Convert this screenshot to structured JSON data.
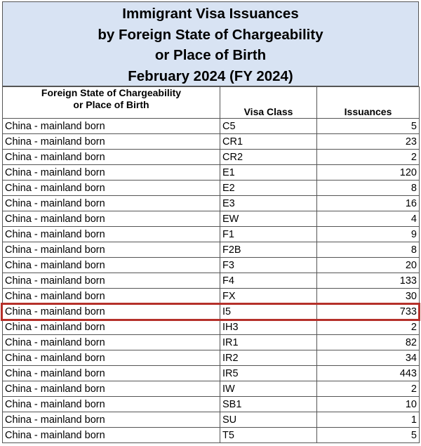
{
  "title": {
    "lines": [
      "Immigrant Visa Issuances",
      "by Foreign State of Chargeability",
      "or Place of Birth",
      "February 2024 (FY 2024)"
    ]
  },
  "table": {
    "headers": {
      "country_line1": "Foreign State of Chargeability",
      "country_line2": "or Place of Birth",
      "visa_class": "Visa Class",
      "issuances": "Issuances"
    },
    "rows": [
      {
        "country": "China - mainland born",
        "visa_class": "C5",
        "issuances": "5"
      },
      {
        "country": "China - mainland born",
        "visa_class": "CR1",
        "issuances": "23"
      },
      {
        "country": "China - mainland born",
        "visa_class": "CR2",
        "issuances": "2"
      },
      {
        "country": "China - mainland born",
        "visa_class": "E1",
        "issuances": "120"
      },
      {
        "country": "China - mainland born",
        "visa_class": "E2",
        "issuances": "8"
      },
      {
        "country": "China - mainland born",
        "visa_class": "E3",
        "issuances": "16"
      },
      {
        "country": "China - mainland born",
        "visa_class": "EW",
        "issuances": "4"
      },
      {
        "country": "China - mainland born",
        "visa_class": "F1",
        "issuances": "9"
      },
      {
        "country": "China - mainland born",
        "visa_class": "F2B",
        "issuances": "8"
      },
      {
        "country": "China - mainland born",
        "visa_class": "F3",
        "issuances": "20"
      },
      {
        "country": "China - mainland born",
        "visa_class": "F4",
        "issuances": "133"
      },
      {
        "country": "China - mainland born",
        "visa_class": "FX",
        "issuances": "30"
      },
      {
        "country": "China - mainland born",
        "visa_class": "I5",
        "issuances": "733"
      },
      {
        "country": "China - mainland born",
        "visa_class": "IH3",
        "issuances": "2"
      },
      {
        "country": "China - mainland born",
        "visa_class": "IR1",
        "issuances": "82"
      },
      {
        "country": "China - mainland born",
        "visa_class": "IR2",
        "issuances": "34"
      },
      {
        "country": "China - mainland born",
        "visa_class": "IR5",
        "issuances": "443"
      },
      {
        "country": "China - mainland born",
        "visa_class": "IW",
        "issuances": "2"
      },
      {
        "country": "China - mainland born",
        "visa_class": "SB1",
        "issuances": "10"
      },
      {
        "country": "China - mainland born",
        "visa_class": "SU",
        "issuances": "1"
      },
      {
        "country": "China - mainland born",
        "visa_class": "T5",
        "issuances": "5"
      }
    ],
    "highlighted_visa_class": "I5"
  },
  "colors": {
    "title_background": "#d8e3f3",
    "highlight_border": "#b5302a"
  }
}
